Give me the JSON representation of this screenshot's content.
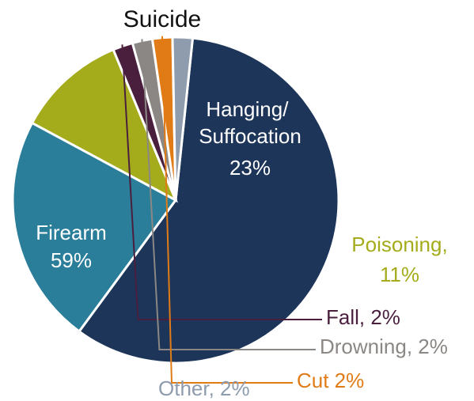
{
  "chart_data": {
    "type": "pie",
    "title": "Suicide",
    "slices": [
      {
        "label": "Firearm",
        "value": 59,
        "value_text": "59%",
        "color": "#1d3559"
      },
      {
        "label": "Hanging/\nSuffocation",
        "value": 23,
        "value_text": "23%",
        "color": "#2a7e9a"
      },
      {
        "label": "Poisoning,",
        "value": 11,
        "value_text": "11%",
        "color": "#a4ac1b"
      },
      {
        "label": "Fall, 2%",
        "value": 2,
        "value_text": "",
        "color": "#4a1f3e"
      },
      {
        "label": "Drowning, 2%",
        "value": 2,
        "value_text": "",
        "color": "#8b8784"
      },
      {
        "label": "Cut 2%",
        "value": 2,
        "value_text": "",
        "color": "#e07b15"
      },
      {
        "label": "Other, 2%",
        "value": 2,
        "value_text": "",
        "color": "#8e9cad"
      }
    ],
    "label_colors": {
      "Poisoning": "#a4ac1b",
      "Fall": "#4a1f3e",
      "Drowning": "#8b8784",
      "Cut": "#e07b15",
      "Other": "#8e9cad"
    },
    "legend": "none (slices labeled directly)"
  }
}
